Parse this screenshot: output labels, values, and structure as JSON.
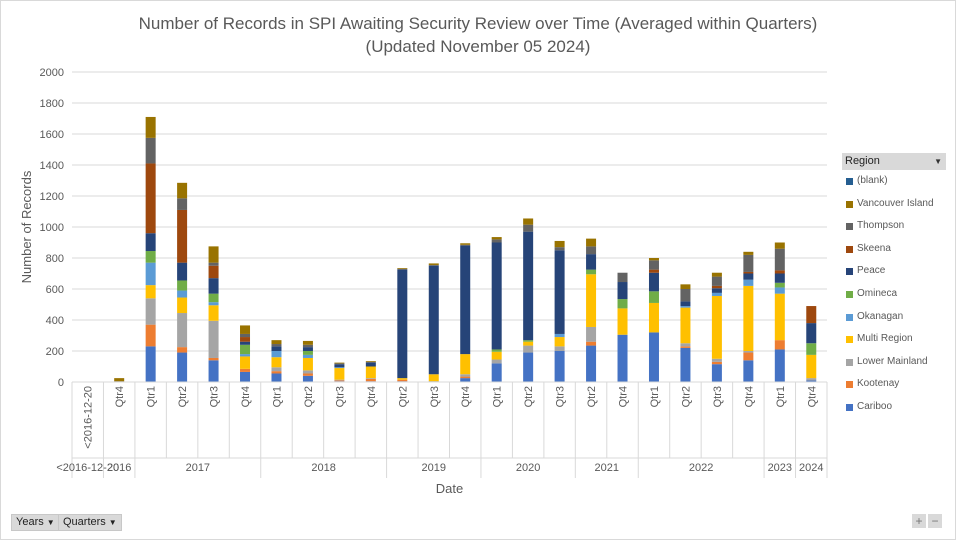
{
  "chart_data": {
    "type": "bar",
    "stacked": true,
    "title": "Number of Records in SPI Awaiting Security Review over Time (Averaged within Quarters)",
    "subtitle": "(Updated November 05 2024)",
    "xlabel": "Date",
    "ylabel": "Number of Records",
    "ylim": [
      0,
      2000
    ],
    "yticks": [
      "0",
      "200",
      "400",
      "600",
      "800",
      "1000",
      "1200",
      "1400",
      "1600",
      "1800",
      "2000"
    ],
    "grid": true,
    "legend_position": "right",
    "legend_title": "Region",
    "categories": [
      "<2016-12-20",
      "Qtr4",
      "Qtr1",
      "Qtr2",
      "Qtr3",
      "Qtr4",
      "Qtr1",
      "Qtr2",
      "Qtr3",
      "Qtr4",
      "Qtr2",
      "Qtr3",
      "Qtr4",
      "Qtr1",
      "Qtr2",
      "Qtr3",
      "Qtr2",
      "Qtr4",
      "Qtr1",
      "Qtr2",
      "Qtr3",
      "Qtr4",
      "Qtr1",
      "Qtr4"
    ],
    "year_groups": [
      {
        "label": "<2016-12-20",
        "count": 1
      },
      {
        "label": "2016",
        "count": 1
      },
      {
        "label": "2017",
        "count": 4
      },
      {
        "label": "2018",
        "count": 4
      },
      {
        "label": "2019",
        "count": 3
      },
      {
        "label": "2020",
        "count": 3
      },
      {
        "label": "2021",
        "count": 2
      },
      {
        "label": "2022",
        "count": 4
      },
      {
        "label": "2023",
        "count": 1
      },
      {
        "label": "2024",
        "count": 1
      }
    ],
    "series": [
      {
        "name": "Cariboo",
        "color": "#4472c4",
        "values": [
          0,
          0,
          230,
          190,
          140,
          65,
          55,
          40,
          5,
          5,
          5,
          5,
          25,
          120,
          190,
          200,
          235,
          305,
          320,
          220,
          115,
          140,
          210,
          10
        ]
      },
      {
        "name": "Kootenay",
        "color": "#ed7d31",
        "values": [
          0,
          0,
          140,
          35,
          15,
          20,
          15,
          15,
          5,
          15,
          10,
          0,
          10,
          0,
          0,
          0,
          25,
          0,
          0,
          10,
          15,
          50,
          60,
          0
        ]
      },
      {
        "name": "Lower Mainland",
        "color": "#a5a5a5",
        "values": [
          0,
          0,
          170,
          220,
          240,
          0,
          25,
          20,
          5,
          5,
          0,
          0,
          15,
          25,
          45,
          30,
          95,
          0,
          0,
          20,
          20,
          10,
          0,
          15
        ]
      },
      {
        "name": "Multi Region",
        "color": "#ffc000",
        "values": [
          0,
          0,
          85,
          100,
          100,
          80,
          65,
          80,
          75,
          75,
          10,
          45,
          130,
          50,
          25,
          60,
          340,
          170,
          190,
          230,
          405,
          420,
          300,
          150
        ]
      },
      {
        "name": "Okanagan",
        "color": "#5b9bd5",
        "values": [
          0,
          0,
          145,
          45,
          20,
          15,
          40,
          20,
          5,
          0,
          0,
          0,
          0,
          0,
          0,
          20,
          0,
          0,
          0,
          10,
          20,
          40,
          40,
          0
        ]
      },
      {
        "name": "Omineca",
        "color": "#70ad47",
        "values": [
          0,
          0,
          75,
          65,
          55,
          60,
          0,
          25,
          0,
          0,
          0,
          0,
          0,
          15,
          10,
          0,
          30,
          60,
          75,
          0,
          0,
          0,
          30,
          75
        ]
      },
      {
        "name": "Peace",
        "color": "#264478",
        "values": [
          0,
          0,
          115,
          115,
          100,
          20,
          30,
          25,
          20,
          25,
          700,
          700,
          700,
          690,
          700,
          540,
          100,
          110,
          120,
          30,
          30,
          40,
          60,
          130
        ]
      },
      {
        "name": "Skeena",
        "color": "#9e480e",
        "values": [
          0,
          0,
          450,
          340,
          80,
          30,
          0,
          0,
          0,
          0,
          0,
          0,
          0,
          0,
          0,
          0,
          0,
          0,
          20,
          0,
          15,
          10,
          20,
          110
        ]
      },
      {
        "name": "Thompson",
        "color": "#636363",
        "values": [
          0,
          5,
          165,
          75,
          20,
          20,
          15,
          15,
          5,
          5,
          5,
          5,
          5,
          20,
          45,
          20,
          50,
          60,
          60,
          80,
          60,
          110,
          140,
          0
        ]
      },
      {
        "name": "Vancouver Island",
        "color": "#997300",
        "values": [
          0,
          20,
          135,
          100,
          105,
          55,
          25,
          25,
          5,
          5,
          5,
          10,
          10,
          15,
          40,
          40,
          50,
          0,
          15,
          30,
          25,
          20,
          40,
          0
        ]
      },
      {
        "name": "(blank)",
        "color": "#255e91",
        "values": [
          0,
          0,
          0,
          0,
          0,
          0,
          0,
          0,
          0,
          0,
          0,
          0,
          0,
          0,
          0,
          0,
          0,
          0,
          0,
          0,
          0,
          0,
          0,
          0
        ]
      }
    ]
  },
  "legend": {
    "header": "Region",
    "items": [
      {
        "label": "(blank)",
        "color": "#255e91"
      },
      {
        "label": "Vancouver Island",
        "color": "#997300"
      },
      {
        "label": "Thompson",
        "color": "#636363"
      },
      {
        "label": "Skeena",
        "color": "#9e480e"
      },
      {
        "label": "Peace",
        "color": "#264478"
      },
      {
        "label": "Omineca",
        "color": "#70ad47"
      },
      {
        "label": "Okanagan",
        "color": "#5b9bd5"
      },
      {
        "label": "Multi Region",
        "color": "#ffc000"
      },
      {
        "label": "Lower Mainland",
        "color": "#a5a5a5"
      },
      {
        "label": "Kootenay",
        "color": "#ed7d31"
      },
      {
        "label": "Cariboo",
        "color": "#4472c4"
      }
    ]
  },
  "field_buttons": {
    "years": "Years",
    "quarters": "Quarters"
  },
  "zoom": {
    "plus": "+",
    "minus": "−"
  },
  "colors": {
    "grid": "#d9d9d9",
    "text": "#595959"
  }
}
